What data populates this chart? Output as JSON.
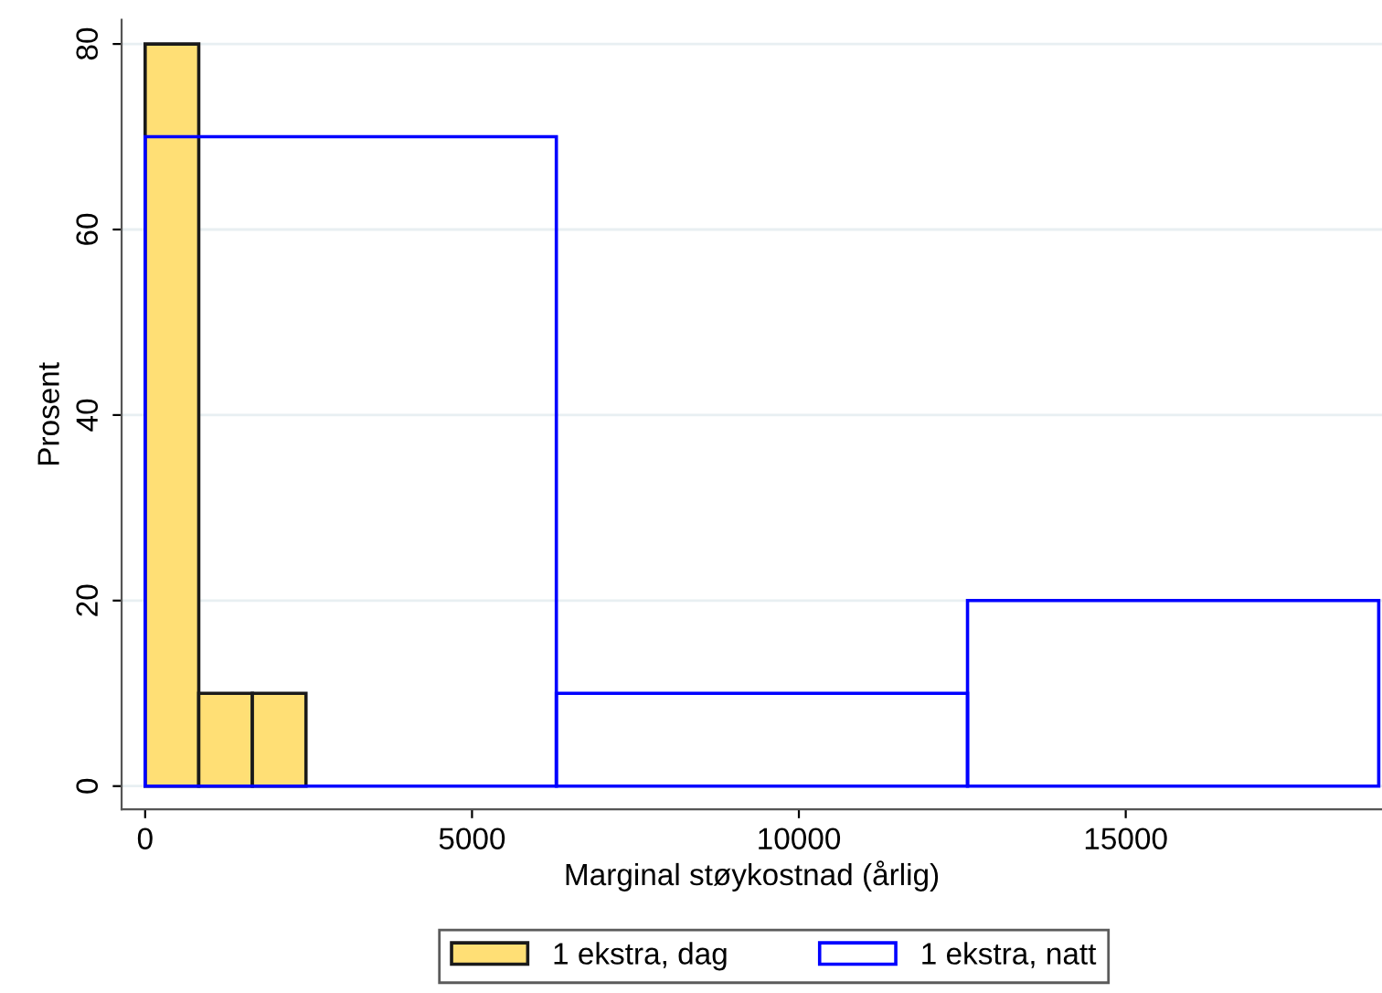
{
  "chart_data": {
    "type": "bar",
    "xlabel": "Marginal støykostnad (årlig)",
    "ylabel": "Prosent",
    "series": [
      {
        "name": "1 ekstra, dag",
        "color": "#ffdf75",
        "x": [
          410,
          1230,
          2050
        ],
        "values": [
          80,
          10,
          10
        ]
      },
      {
        "name": "1 ekstra, natt",
        "color": "#0000ff",
        "x": [
          3145,
          9435,
          15725
        ],
        "values": [
          70,
          10,
          20
        ]
      }
    ],
    "xlim": [
      -360,
      18920
    ],
    "ylim": [
      -2.5,
      82.6
    ],
    "xticks": [
      0,
      5000,
      10000,
      15000
    ],
    "yticks": [
      0,
      20,
      40,
      60,
      80
    ],
    "grid": "y",
    "legend": "bottom"
  }
}
